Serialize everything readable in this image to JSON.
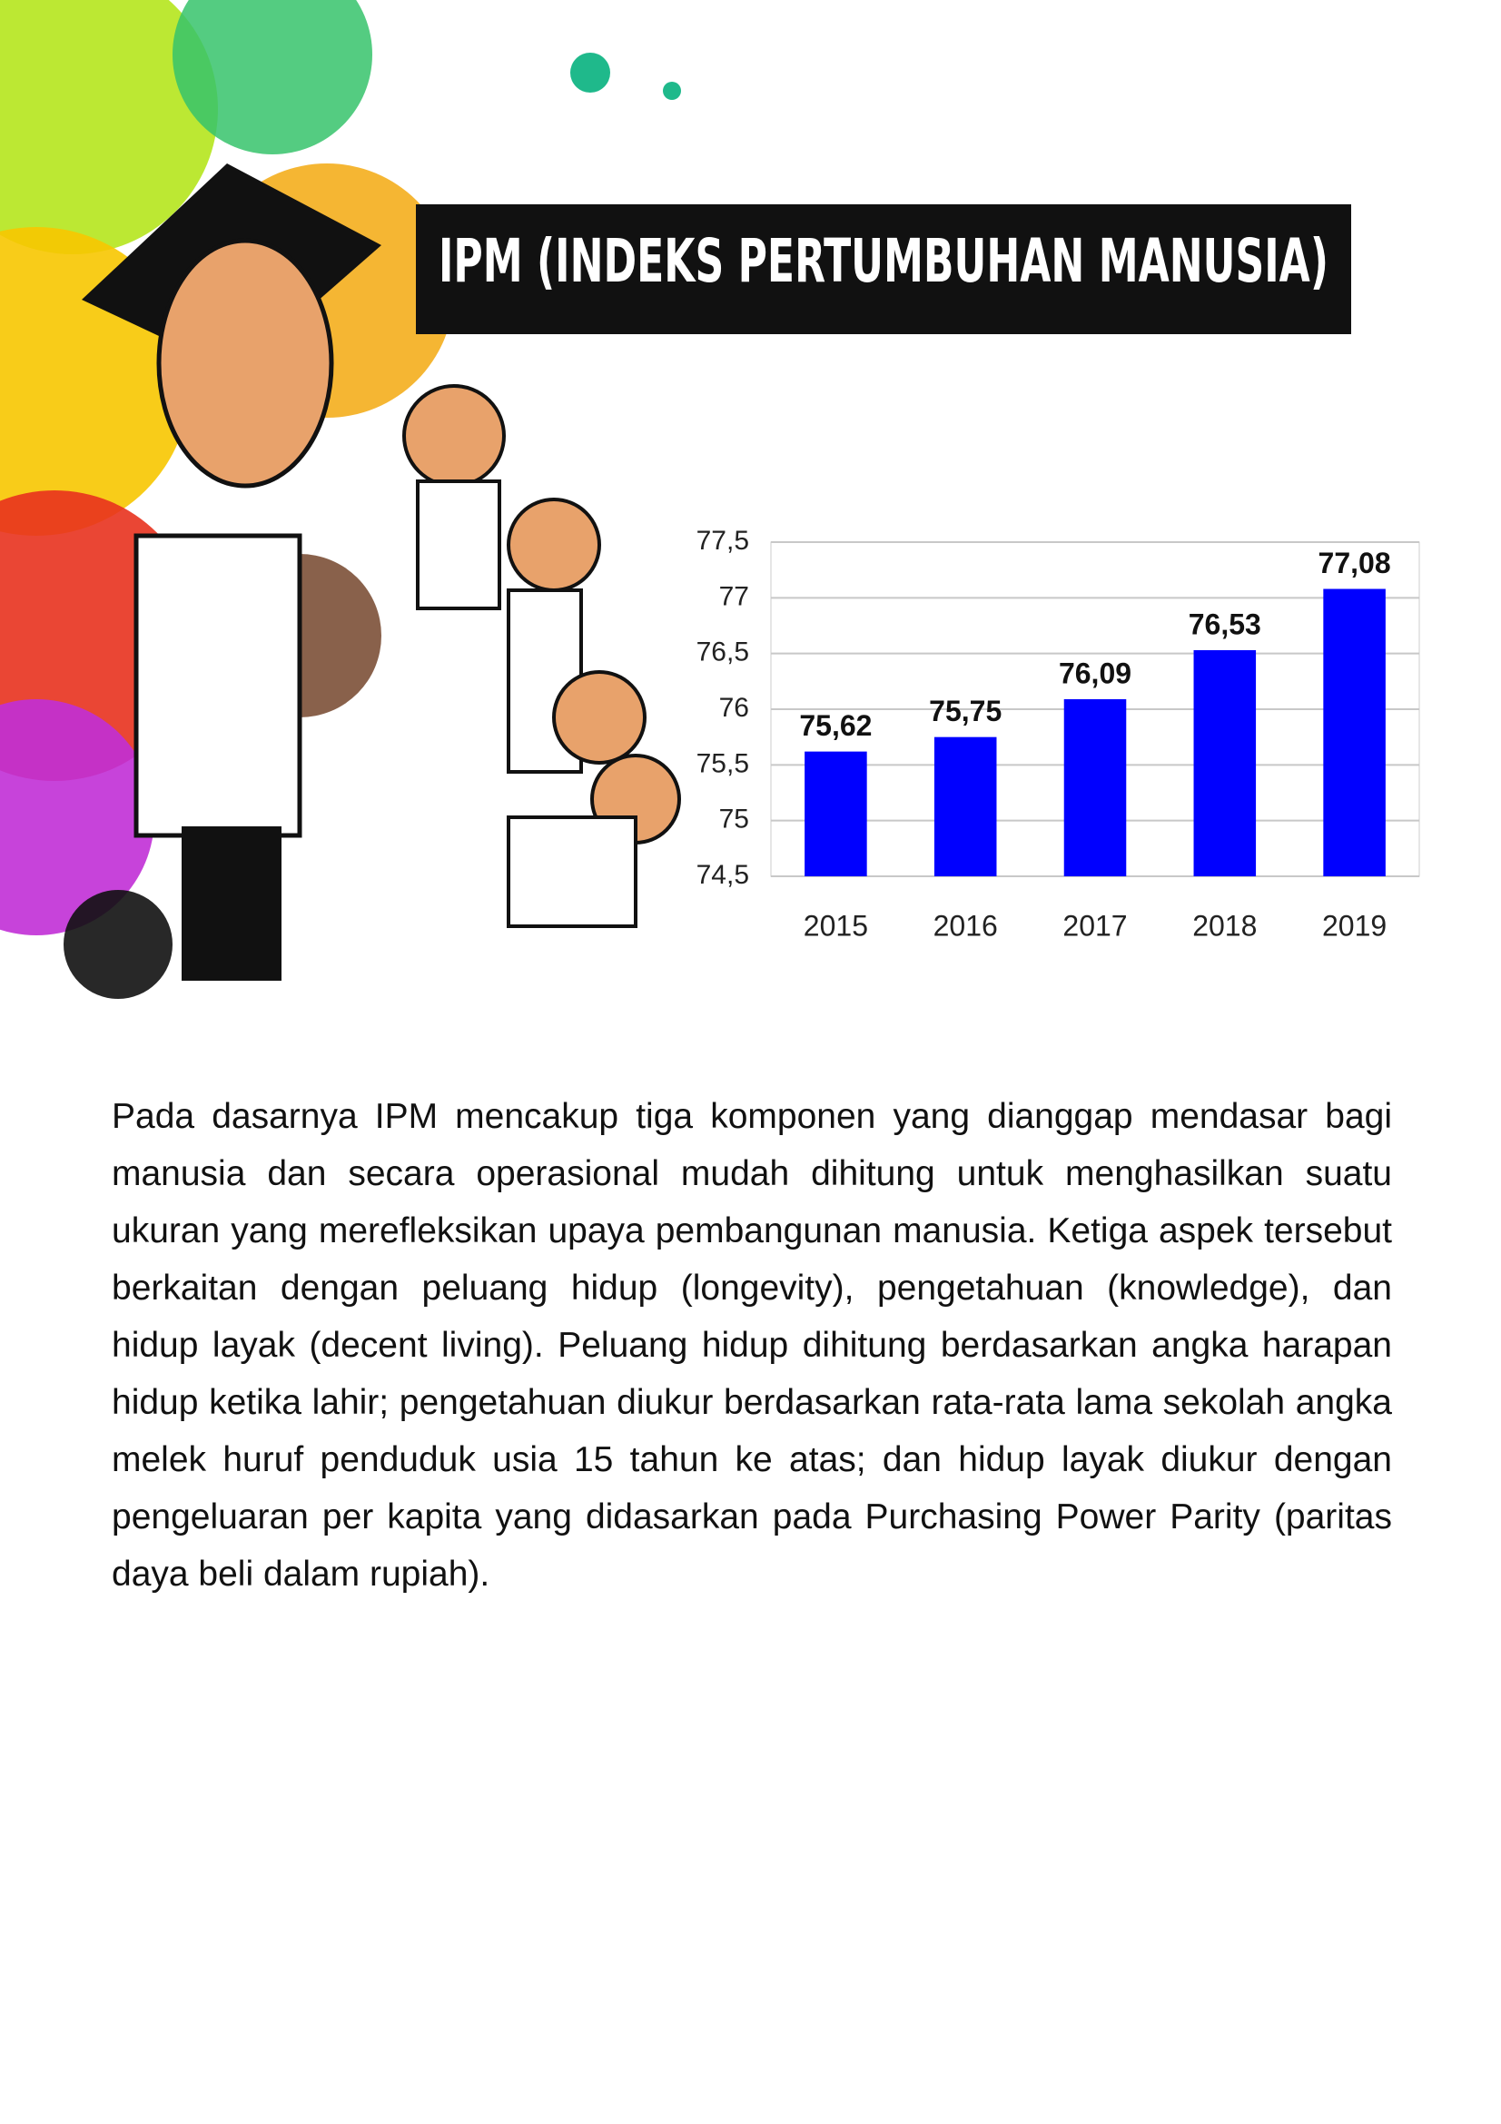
{
  "title": "IPM (INDEKS PERTUMBUHAN MANUSIA)",
  "chart_data": {
    "type": "bar",
    "categories": [
      "2015",
      "2016",
      "2017",
      "2018",
      "2019"
    ],
    "values": [
      75.62,
      75.75,
      76.09,
      76.53,
      77.08
    ],
    "value_labels": [
      "75,62",
      "75,75",
      "76,09",
      "76,53",
      "77,08"
    ],
    "color": "#0000ff",
    "ylim": [
      74.5,
      77.5
    ],
    "yticks": [
      {
        "value": 74.5,
        "label": "74,5"
      },
      75,
      {
        "value": 75.5,
        "label": "75,5"
      },
      76,
      {
        "value": 76.5,
        "label": "76,5"
      },
      77,
      {
        "value": 77.5,
        "label": "77,5"
      }
    ],
    "grid": true
  },
  "body": "Pada dasarnya IPM mencakup tiga komponen yang dianggap mendasar bagi manusia dan secara operasional mudah dihitung untuk menghasilkan suatu ukuran yang merefleksikan upaya pembangunan manusia. Ketiga aspek tersebut berkaitan dengan peluang hidup (longevity), pengetahuan (knowledge), dan hidup layak (decent living). Peluang hidup dihitung berdasarkan angka harapan hidup ketika lahir; pengetahuan diukur berdasarkan rata-rata lama sekolah angka melek huruf penduduk usia 15 tahun ke atas; dan hidup layak diukur dengan pengeluaran per kapita yang didasarkan pada Purchasing Power Parity (paritas daya beli dalam rupiah)."
}
